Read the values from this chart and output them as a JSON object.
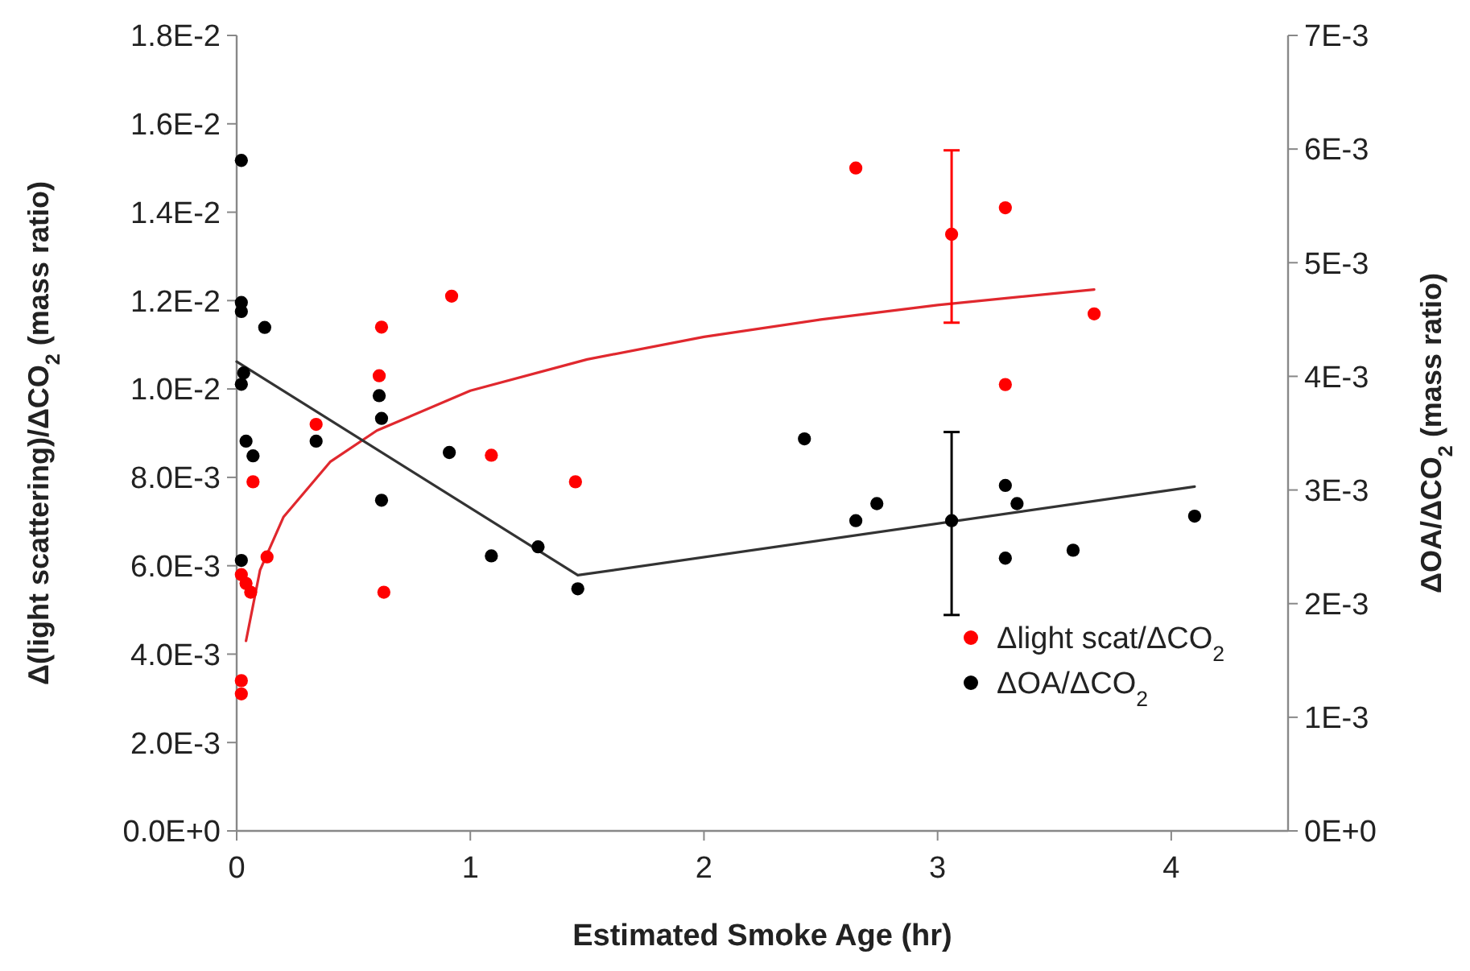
{
  "chart_data": {
    "type": "scatter",
    "xlabel": "Estimated Smoke Age (hr)",
    "ylabel": "Δ(light scattering)/ΔCO$_{2}$ (mass ratio)",
    "y2label": "ΔOA/ΔCO$_{2}$ (mass ratio)",
    "xlim": [
      0,
      4.5
    ],
    "xticks": [
      0,
      1,
      2,
      3,
      4
    ],
    "ylim": [
      0,
      0.018
    ],
    "yticks": [
      {
        "value": 0,
        "label": "0.0E+0"
      },
      {
        "value": 0.002,
        "label": "2.0E-3"
      },
      {
        "value": 0.004,
        "label": "4.0E-3"
      },
      {
        "value": 0.006,
        "label": "6.0E-3"
      },
      {
        "value": 0.008,
        "label": "8.0E-3"
      },
      {
        "value": 0.01,
        "label": "1.0E-2"
      },
      {
        "value": 0.012,
        "label": "1.2E-2"
      },
      {
        "value": 0.014,
        "label": "1.4E-2"
      },
      {
        "value": 0.016,
        "label": "1.6E-2"
      },
      {
        "value": 0.018,
        "label": "1.8E-2"
      }
    ],
    "y2lim": [
      0,
      0.007
    ],
    "y2ticks": [
      {
        "value": 0,
        "label": "0E+0"
      },
      {
        "value": 0.001,
        "label": "1E-3"
      },
      {
        "value": 0.002,
        "label": "2E-3"
      },
      {
        "value": 0.003,
        "label": "3E-3"
      },
      {
        "value": 0.004,
        "label": "4E-3"
      },
      {
        "value": 0.005,
        "label": "5E-3"
      },
      {
        "value": 0.006,
        "label": "6E-3"
      },
      {
        "value": 0.007,
        "label": "7E-3"
      }
    ],
    "grid": false,
    "legend": "bottom right",
    "marker": "circle",
    "series": [
      {
        "type": "line",
        "color": "#e0282e",
        "marker": "none",
        "x": [
          0.04,
          0.1,
          0.2,
          0.4,
          0.6,
          1,
          1.5,
          2,
          2.5,
          3,
          3.67
        ],
        "values": [
          0.0043,
          0.0059,
          0.0071,
          0.00835,
          0.00906,
          0.00996,
          0.01067,
          0.01118,
          0.01157,
          0.0119,
          0.01225
        ]
      },
      {
        "type": "line",
        "color": "#333333",
        "marker": "none",
        "axis": "y2",
        "x": [
          0,
          1.46,
          4.1
        ],
        "values": [
          0.00413,
          0.00225,
          0.00303
        ]
      },
      {
        "name": "Δlight scat/ΔCO$_{2}$",
        "color": "#ff0000",
        "x": [
          0.02,
          0.04,
          0.06,
          0.02,
          0.02,
          0.07,
          0.13,
          0.34,
          0.62,
          0.61,
          0.63,
          0.92,
          1.09,
          1.45,
          2.65,
          3.06,
          3.29,
          3.67,
          3.29
        ],
        "values": [
          0.0058,
          0.0056,
          0.0054,
          0.0034,
          0.0031,
          0.0079,
          0.0062,
          0.0092,
          0.0114,
          0.0103,
          0.0054,
          0.0121,
          0.0085,
          0.0079,
          0.015,
          0.0135,
          0.0141,
          0.0117,
          0.0101
        ],
        "errors": [
          null,
          null,
          null,
          null,
          null,
          null,
          null,
          null,
          null,
          null,
          null,
          null,
          null,
          null,
          null,
          [
            0.0115,
            0.0154
          ],
          null,
          null,
          null
        ]
      },
      {
        "name": "ΔOA/ΔCO$_{2}$",
        "color": "#000000",
        "axis": "y2",
        "x": [
          0.02,
          0.02,
          0.02,
          0.12,
          0.03,
          0.02,
          0.04,
          0.07,
          0.02,
          0.34,
          0.61,
          0.62,
          0.62,
          0.91,
          1.09,
          1.29,
          1.46,
          2.43,
          2.65,
          2.74,
          3.06,
          3.29,
          3.29,
          3.34,
          3.58,
          4.1
        ],
        "values": [
          0.0059,
          0.00465,
          0.00457,
          0.00443,
          0.00403,
          0.00393,
          0.00343,
          0.0033,
          0.00238,
          0.00343,
          0.00383,
          0.00363,
          0.00291,
          0.00333,
          0.00242,
          0.0025,
          0.00213,
          0.00345,
          0.00273,
          0.00288,
          0.00273,
          0.00304,
          0.0024,
          0.00288,
          0.00247,
          0.00277
        ],
        "errors": [
          null,
          null,
          null,
          null,
          null,
          null,
          null,
          null,
          null,
          null,
          null,
          null,
          null,
          null,
          null,
          null,
          null,
          null,
          null,
          null,
          [
            0.0019,
            0.00351
          ],
          null,
          null,
          null,
          null,
          null
        ]
      }
    ]
  }
}
